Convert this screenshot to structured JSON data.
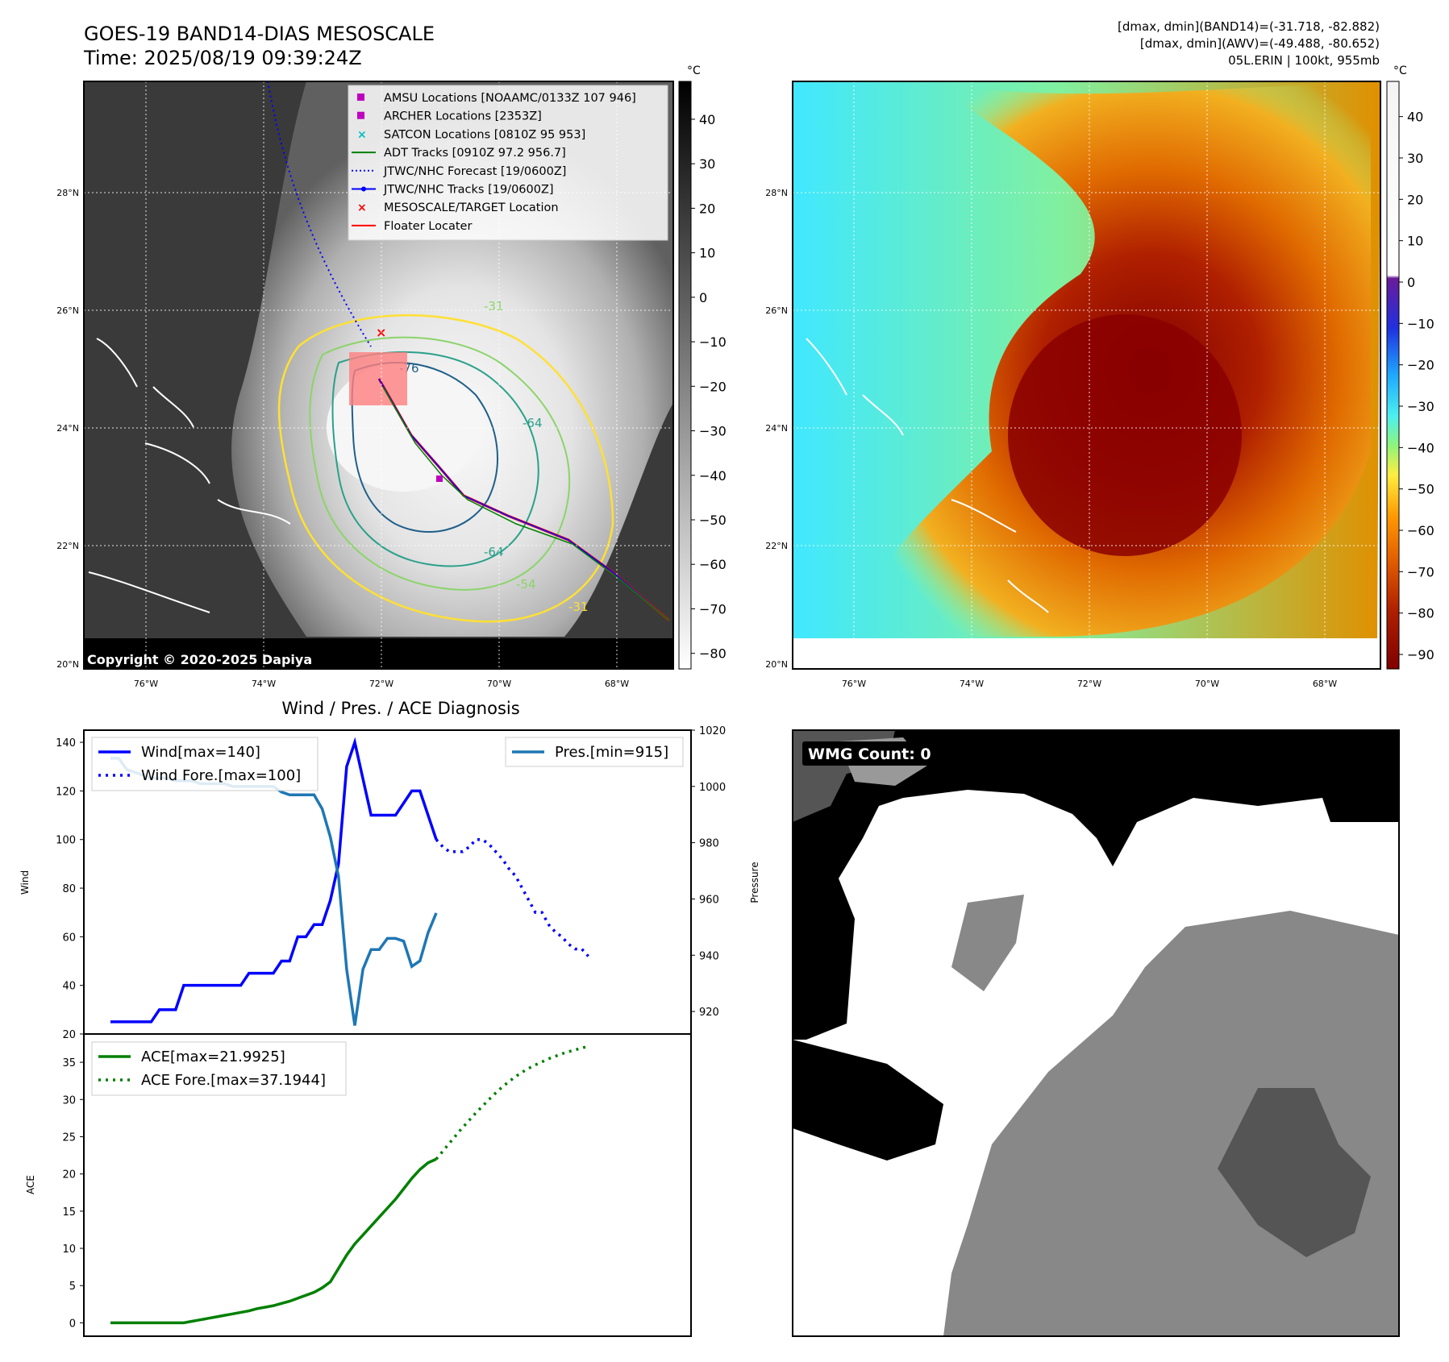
{
  "header": {
    "title_line1": "GOES-19 BAND14-DIAS MESOSCALE",
    "title_line2": "Time: 2025/08/19 09:39:24Z",
    "stats_line1": "[dmax, dmin](BAND14)=(-31.718, -82.882)",
    "stats_line2": "[dmax, dmin](AWV)=(-49.488, -80.652)",
    "stats_line3": "05L.ERIN | 100kt, 955mb"
  },
  "map_axes": {
    "lat_labels": [
      "28°N",
      "26°N",
      "24°N",
      "22°N",
      "20°N"
    ],
    "lon_labels": [
      "76°W",
      "74°W",
      "72°W",
      "70°W",
      "68°W"
    ],
    "colorbar_unit": "°C",
    "copyright": "Copyright © 2020-2025 Dapiya"
  },
  "ir_map": {
    "legend": [
      {
        "label": "AMSU Locations [NOAAMC/0133Z 107 946]",
        "color": "#c000c0",
        "marker": "square"
      },
      {
        "label": "ARCHER Locations [2353Z]",
        "color": "#c000c0",
        "marker": "square"
      },
      {
        "label": "SATCON Locations [0810Z 95 953]",
        "color": "#00c0c0",
        "marker": "x"
      },
      {
        "label": "ADT Tracks [0910Z 97.2 956.7]",
        "color": "#008000",
        "marker": "line"
      },
      {
        "label": "JTWC/NHC Forecast [19/0600Z]",
        "color": "#0000ff",
        "marker": "dotted"
      },
      {
        "label": "JTWC/NHC Tracks [19/0600Z]",
        "color": "#0000ff",
        "marker": "line-dot"
      },
      {
        "label": "MESOSCALE/TARGET Location",
        "color": "#ff0000",
        "marker": "x"
      },
      {
        "label": "Floater Locater",
        "color": "#ff0000",
        "marker": "line"
      }
    ],
    "colorbar_ticks": [
      "40",
      "30",
      "20",
      "10",
      "0",
      "−10",
      "−20",
      "−30",
      "−40",
      "−50",
      "−60",
      "−70",
      "−80"
    ],
    "contour_labels": [
      "-31",
      "-76",
      "-64",
      "-64",
      "-54",
      "-31"
    ]
  },
  "awv_map": {
    "colorbar_ticks": [
      "40",
      "30",
      "20",
      "10",
      "0",
      "−10",
      "−20",
      "−30",
      "−40",
      "−50",
      "−60",
      "−70",
      "−80",
      "−90"
    ]
  },
  "wmg_panel": {
    "label": "WMG Count: 0"
  },
  "chart_data": [
    {
      "type": "line",
      "title": "Wind / Pres. / ACE Diagnosis",
      "ylabel": "Wind",
      "y2label": "Pressure",
      "ylim": [
        20,
        145
      ],
      "y2lim": [
        912,
        1020
      ],
      "yticks": [
        "20",
        "40",
        "60",
        "80",
        "100",
        "120",
        "140"
      ],
      "y2ticks": [
        "920",
        "940",
        "960",
        "980",
        "1000",
        "1020"
      ],
      "series": [
        {
          "name": "Wind[max=140]",
          "axis": "left",
          "color": "#0000ff",
          "style": "solid",
          "values": [
            25,
            25,
            25,
            25,
            25,
            25,
            30,
            30,
            30,
            40,
            40,
            40,
            40,
            40,
            40,
            40,
            40,
            45,
            45,
            45,
            45,
            50,
            50,
            60,
            60,
            65,
            65,
            75,
            90,
            130,
            140,
            125,
            110,
            110,
            110,
            110,
            115,
            120,
            120,
            110,
            100
          ]
        },
        {
          "name": "Wind Fore.[max=100]",
          "axis": "left",
          "color": "#0000ff",
          "style": "dotted",
          "values": [
            100,
            97,
            95,
            95,
            95,
            97,
            100,
            100,
            98,
            95,
            92,
            88,
            85,
            80,
            75,
            70,
            70,
            65,
            62,
            60,
            57,
            55,
            55,
            52
          ]
        },
        {
          "name": "Pres.[min=915]",
          "axis": "right",
          "color": "#1f77b4",
          "style": "solid",
          "values": [
            1010,
            1010,
            1006,
            1005,
            1004,
            1003,
            1003,
            1003,
            1002,
            1002,
            1002,
            1001,
            1001,
            1001,
            1001,
            1000,
            1000,
            1000,
            1000,
            1000,
            1000,
            998,
            997,
            997,
            997,
            997,
            992,
            982,
            968,
            935,
            915,
            935,
            942,
            942,
            946,
            946,
            945,
            936,
            938,
            948,
            955
          ]
        }
      ]
    },
    {
      "type": "line",
      "ylabel": "ACE",
      "ylim": [
        -1.8,
        38.8
      ],
      "yticks": [
        "0",
        "5",
        "10",
        "15",
        "20",
        "25",
        "30",
        "35"
      ],
      "series": [
        {
          "name": "ACE[max=21.9925]",
          "color": "#008000",
          "style": "solid",
          "values": [
            0,
            0,
            0,
            0,
            0,
            0,
            0,
            0,
            0,
            0,
            0.2,
            0.4,
            0.6,
            0.8,
            1.0,
            1.2,
            1.4,
            1.6,
            1.9,
            2.1,
            2.3,
            2.6,
            2.9,
            3.3,
            3.7,
            4.1,
            4.7,
            5.5,
            7.3,
            9.1,
            10.6,
            11.8,
            13.0,
            14.2,
            15.4,
            16.6,
            18.0,
            19.4,
            20.6,
            21.5,
            21.9925
          ]
        },
        {
          "name": "ACE Fore.[max=37.1944]",
          "color": "#008000",
          "style": "dotted",
          "values": [
            21.99,
            23.3,
            24.6,
            25.9,
            27.1,
            28.3,
            29.4,
            30.5,
            31.5,
            32.4,
            33.2,
            33.9,
            34.5,
            35.0,
            35.5,
            35.9,
            36.3,
            36.6,
            36.9,
            37.1944
          ]
        }
      ]
    }
  ]
}
